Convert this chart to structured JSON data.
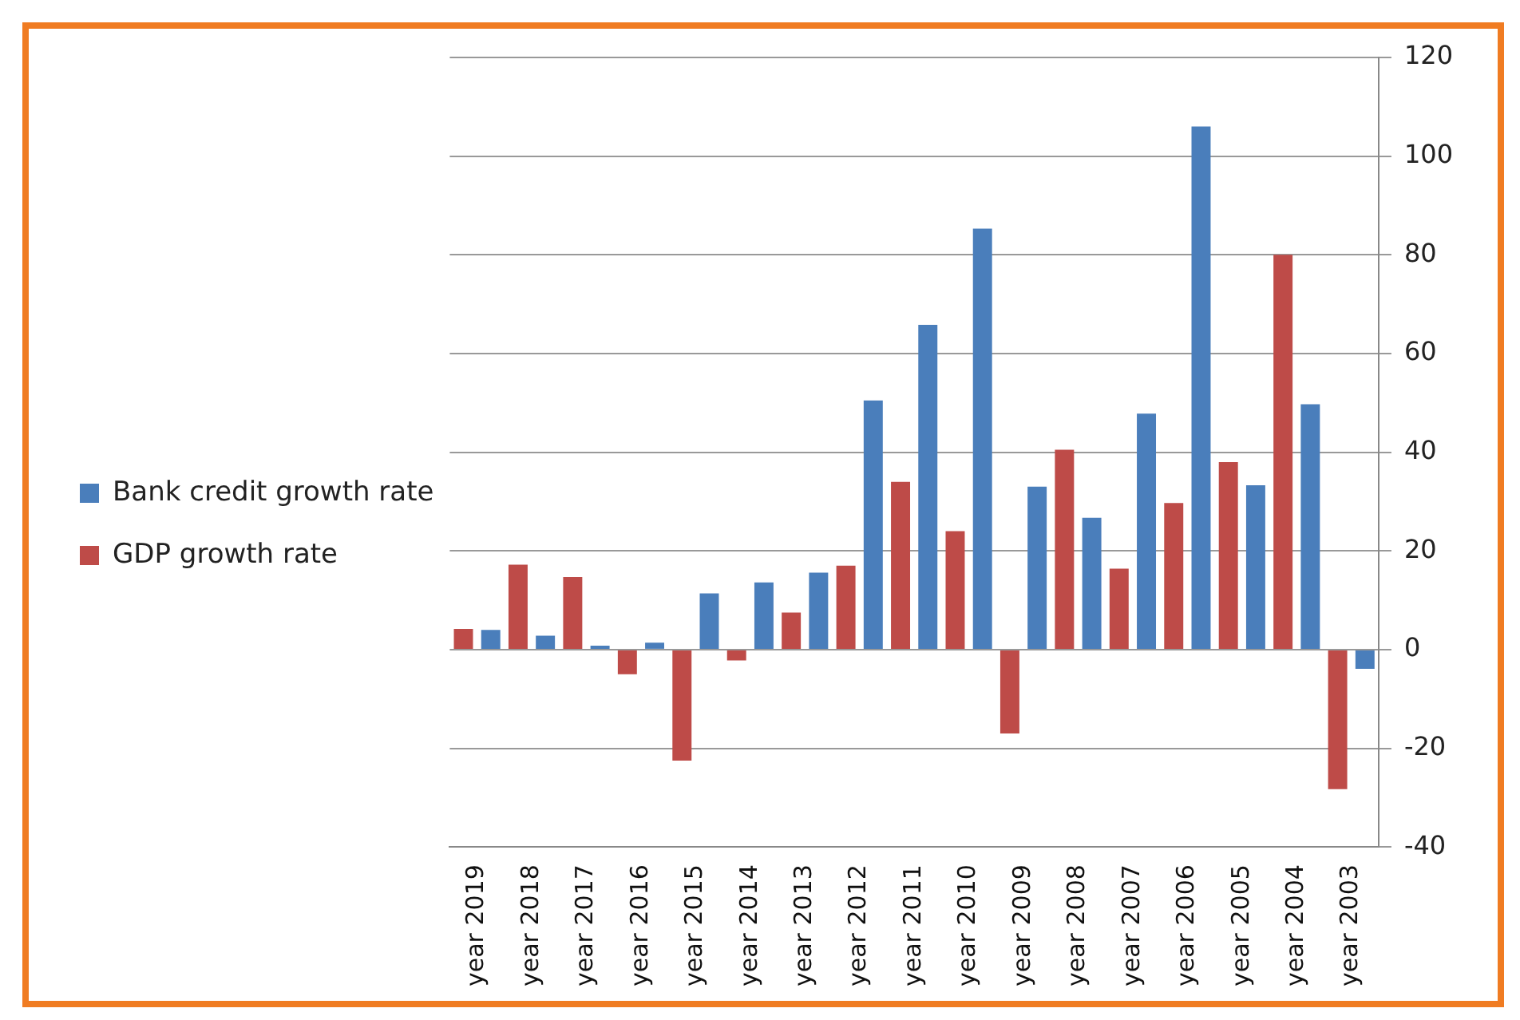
{
  "chart_data": {
    "type": "bar",
    "categories": [
      "year 2019",
      "year 2018",
      "year 2017",
      "year 2016",
      "year 2015",
      "year 2014",
      "year 2013",
      "year 2012",
      "year 2011",
      "year 2010",
      "year 2009",
      "year 2008",
      "year 2007",
      "year 2006",
      "year 2005",
      "year 2004",
      "year 2003"
    ],
    "series": [
      {
        "name": "GDP growth rate",
        "color": "#be4b48",
        "values": [
          4.2,
          17.2,
          14.7,
          -5,
          -22.5,
          -2.2,
          7.5,
          17,
          34,
          24,
          -17,
          40.5,
          16.4,
          29.7,
          38,
          80,
          -28.3
        ]
      },
      {
        "name": "Bank credit growth rate",
        "color": "#4a7ebb",
        "values": [
          4,
          2.8,
          0.8,
          1.4,
          11.4,
          13.6,
          15.6,
          50.5,
          65.8,
          85.3,
          33,
          26.7,
          47.8,
          106,
          33.3,
          49.7,
          -3.9
        ]
      }
    ],
    "ylim": [
      -40,
      120
    ],
    "yticks": [
      -40,
      -20,
      0,
      20,
      40,
      60,
      80,
      100,
      120
    ],
    "grid": "y",
    "legend": "left"
  }
}
